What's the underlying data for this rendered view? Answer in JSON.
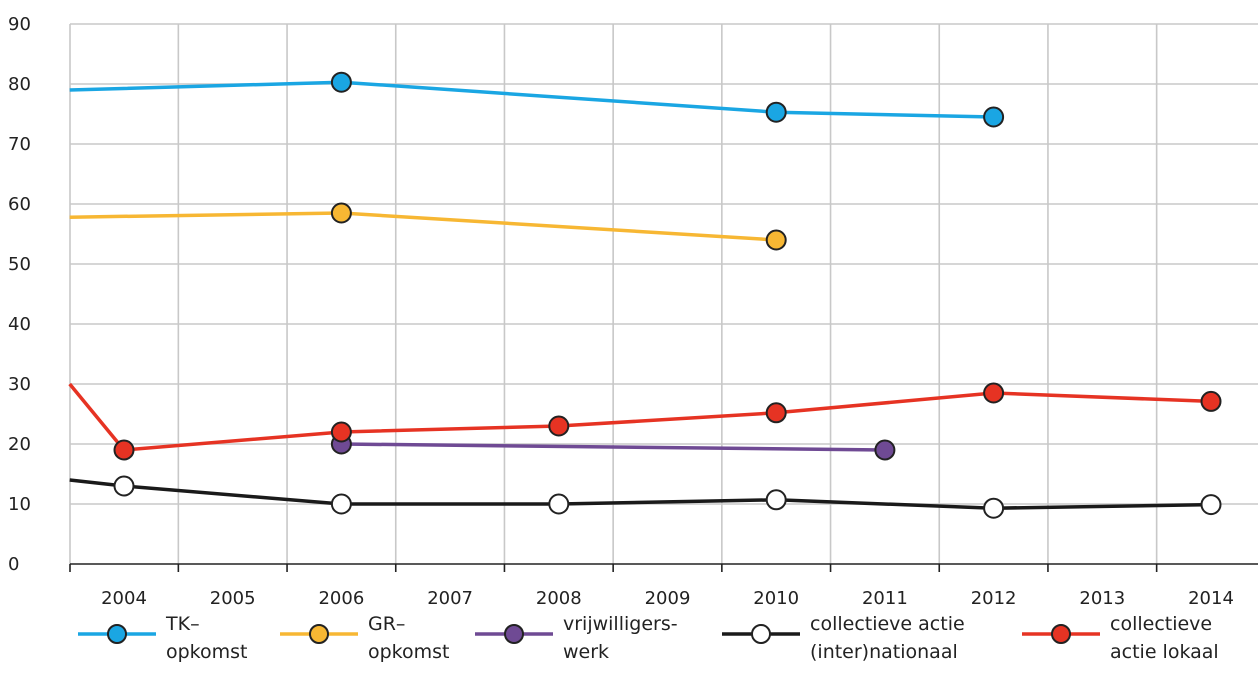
{
  "chart_data": {
    "type": "line",
    "x": [
      2003.5,
      2004,
      2005,
      2006,
      2007,
      2008,
      2009,
      2010,
      2011,
      2012,
      2013,
      2014
    ],
    "xticks": [
      "2004",
      "2005",
      "2006",
      "2007",
      "2008",
      "2009",
      "2010",
      "2011",
      "2012",
      "2013",
      "2014"
    ],
    "xlim": [
      2003.5,
      2014.2
    ],
    "ylim": [
      0,
      90
    ],
    "yticks": [
      "0",
      "10",
      "20",
      "30",
      "40",
      "50",
      "60",
      "70",
      "80",
      "90"
    ],
    "grid": true,
    "legend_placement": "bottom",
    "series": [
      {
        "name": "TK–\nopkomst",
        "color": "#1aa6e3",
        "points": [
          [
            2003.5,
            79
          ],
          [
            2006,
            80.3
          ],
          [
            2010,
            75.3
          ],
          [
            2012,
            74.5
          ]
        ],
        "markers": [
          [
            2006,
            80.3
          ],
          [
            2010,
            75.3
          ],
          [
            2012,
            74.5
          ]
        ]
      },
      {
        "name": "GR–\nopkomst",
        "color": "#f7b733",
        "points": [
          [
            2003.5,
            57.8
          ],
          [
            2006,
            58.5
          ],
          [
            2010,
            54
          ]
        ],
        "markers": [
          [
            2006,
            58.5
          ],
          [
            2010,
            54
          ]
        ]
      },
      {
        "name": "vrijwilligers-\nwerk",
        "color": "#6f4a94",
        "points": [
          [
            2006,
            20
          ],
          [
            2011,
            19
          ]
        ],
        "markers": [
          [
            2006,
            20
          ],
          [
            2011,
            19
          ]
        ]
      },
      {
        "name": "collectieve actie\n(inter)nationaal",
        "color": "#1a1a1a",
        "marker_fill": "#ffffff",
        "points": [
          [
            2003.5,
            14
          ],
          [
            2004,
            13
          ],
          [
            2006,
            10
          ],
          [
            2008,
            10
          ],
          [
            2010,
            10.7
          ],
          [
            2012,
            9.3
          ],
          [
            2014,
            9.9
          ]
        ],
        "markers": [
          [
            2004,
            13
          ],
          [
            2006,
            10
          ],
          [
            2008,
            10
          ],
          [
            2010,
            10.7
          ],
          [
            2012,
            9.3
          ],
          [
            2014,
            9.9
          ]
        ]
      },
      {
        "name": "collectieve\nactie lokaal",
        "color": "#e63323",
        "points": [
          [
            2003.5,
            30
          ],
          [
            2004,
            19
          ],
          [
            2006,
            22
          ],
          [
            2008,
            23
          ],
          [
            2010,
            25.2
          ],
          [
            2012,
            28.5
          ],
          [
            2014,
            27.1
          ]
        ],
        "markers": [
          [
            2004,
            19
          ],
          [
            2006,
            22
          ],
          [
            2008,
            23
          ],
          [
            2010,
            25.2
          ],
          [
            2012,
            28.5
          ],
          [
            2014,
            27.1
          ]
        ]
      }
    ]
  }
}
